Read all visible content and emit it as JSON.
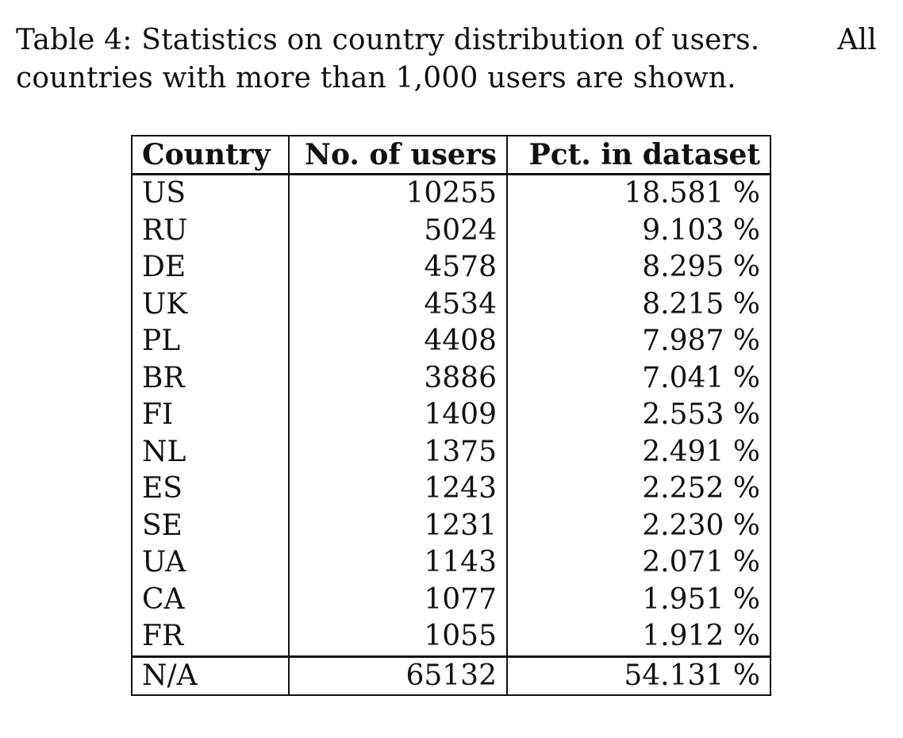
{
  "caption": {
    "part1": "Table 4:  Statistics on country distribution of users.",
    "part2": "All",
    "line2": "countries with more than 1,000 users are shown."
  },
  "table": {
    "headers": [
      "Country",
      "No. of users",
      "Pct. in dataset"
    ],
    "rows": [
      {
        "country": "US",
        "users": "10255",
        "pct": "18.581 %"
      },
      {
        "country": "RU",
        "users": "5024",
        "pct": "9.103 %"
      },
      {
        "country": "DE",
        "users": "4578",
        "pct": "8.295 %"
      },
      {
        "country": "UK",
        "users": "4534",
        "pct": "8.215 %"
      },
      {
        "country": "PL",
        "users": "4408",
        "pct": "7.987 %"
      },
      {
        "country": "BR",
        "users": "3886",
        "pct": "7.041 %"
      },
      {
        "country": "FI",
        "users": "1409",
        "pct": "2.553 %"
      },
      {
        "country": "NL",
        "users": "1375",
        "pct": "2.491 %"
      },
      {
        "country": "ES",
        "users": "1243",
        "pct": "2.252 %"
      },
      {
        "country": "SE",
        "users": "1231",
        "pct": "2.230 %"
      },
      {
        "country": "UA",
        "users": "1143",
        "pct": "2.071 %"
      },
      {
        "country": "CA",
        "users": "1077",
        "pct": "1.951 %"
      },
      {
        "country": "FR",
        "users": "1055",
        "pct": "1.912 %"
      }
    ],
    "footer": {
      "country": "N/A",
      "users": "65132",
      "pct": "54.131 %"
    }
  }
}
